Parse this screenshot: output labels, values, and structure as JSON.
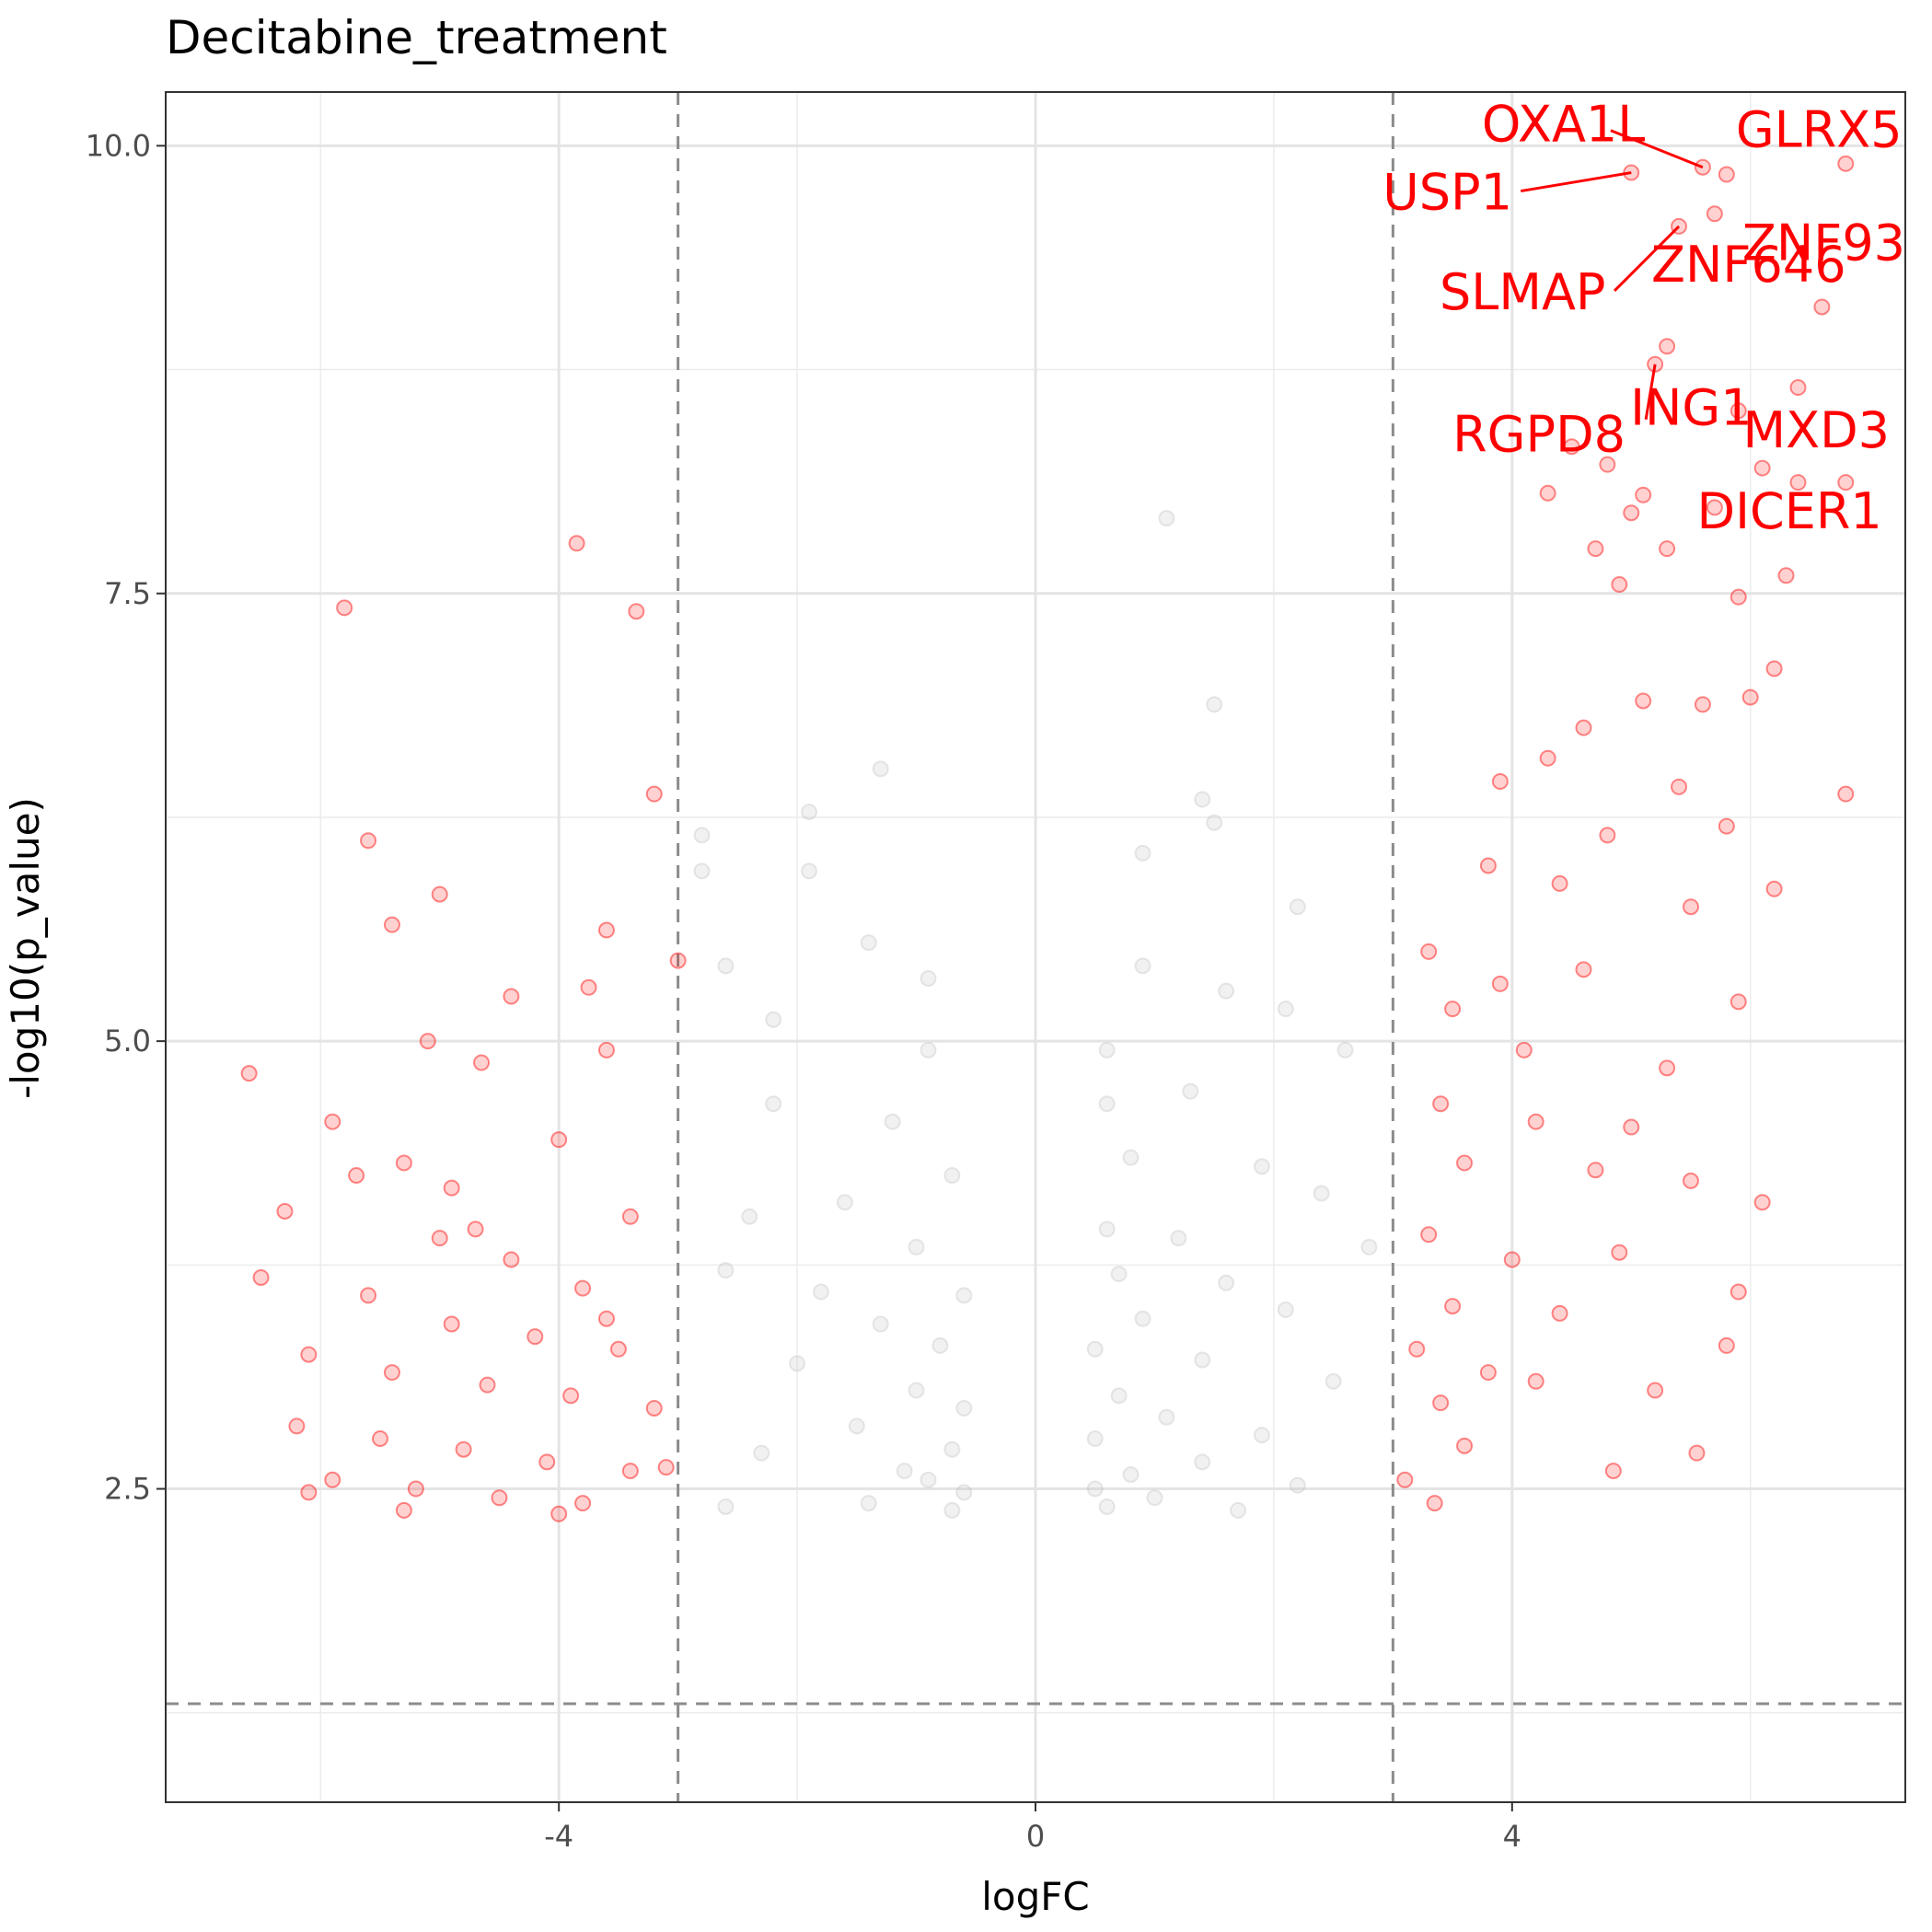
{
  "chart_data": {
    "type": "scatter",
    "title": "Decitabine_treatment",
    "xlabel": "logFC",
    "ylabel": "-log10(p_value)",
    "xlim": [
      -7.3,
      7.3
    ],
    "ylim": [
      0.75,
      10.3
    ],
    "x_ticks": [
      -4,
      0,
      4
    ],
    "x_tick_labels": [
      "-4",
      "0",
      "4"
    ],
    "y_ticks": [
      2.5,
      5.0,
      7.5,
      10.0
    ],
    "y_tick_labels": [
      "2.5",
      "5.0",
      "7.5",
      "10.0"
    ],
    "grid": true,
    "thresholds": {
      "logFC": [
        -3,
        3
      ],
      "neg_log10_p": 1.3
    },
    "colors": {
      "significant": "#ff0000",
      "not_significant": "#bebebe",
      "threshold_line": "#8c8c8c",
      "label": "#ff0000"
    },
    "series": [
      {
        "color": "#ff0000",
        "points": [
          [
            5.6,
            9.88
          ],
          [
            5.0,
            9.85
          ],
          [
            5.8,
            9.84
          ],
          [
            6.8,
            9.9
          ],
          [
            5.7,
            9.62
          ],
          [
            5.4,
            9.55
          ],
          [
            6.6,
            9.1
          ],
          [
            5.3,
            8.88
          ],
          [
            5.2,
            8.78
          ],
          [
            6.4,
            8.65
          ],
          [
            5.9,
            8.52
          ],
          [
            4.5,
            8.32
          ],
          [
            4.8,
            8.22
          ],
          [
            6.1,
            8.2
          ],
          [
            6.4,
            8.12
          ],
          [
            6.8,
            8.12
          ],
          [
            4.3,
            8.06
          ],
          [
            5.0,
            7.95
          ],
          [
            5.1,
            8.05
          ],
          [
            5.7,
            7.98
          ],
          [
            4.7,
            7.75
          ],
          [
            5.3,
            7.75
          ],
          [
            6.3,
            7.6
          ],
          [
            4.9,
            7.55
          ],
          [
            5.9,
            7.48
          ],
          [
            6.2,
            7.08
          ],
          [
            5.6,
            6.88
          ],
          [
            4.6,
            6.75
          ],
          [
            5.1,
            6.9
          ],
          [
            6.0,
            6.92
          ],
          [
            4.3,
            6.58
          ],
          [
            3.9,
            6.45
          ],
          [
            5.4,
            6.42
          ],
          [
            6.8,
            6.38
          ],
          [
            4.8,
            6.15
          ],
          [
            5.8,
            6.2
          ],
          [
            3.8,
            5.98
          ],
          [
            4.4,
            5.88
          ],
          [
            5.5,
            5.75
          ],
          [
            6.2,
            5.85
          ],
          [
            3.3,
            5.5
          ],
          [
            3.9,
            5.32
          ],
          [
            4.6,
            5.4
          ],
          [
            5.9,
            5.22
          ],
          [
            3.5,
            5.18
          ],
          [
            4.1,
            4.95
          ],
          [
            5.3,
            4.85
          ],
          [
            3.4,
            4.65
          ],
          [
            4.2,
            4.55
          ],
          [
            5.0,
            4.52
          ],
          [
            3.6,
            4.32
          ],
          [
            4.7,
            4.28
          ],
          [
            5.5,
            4.22
          ],
          [
            6.1,
            4.1
          ],
          [
            3.3,
            3.92
          ],
          [
            4.0,
            3.78
          ],
          [
            4.9,
            3.82
          ],
          [
            3.5,
            3.52
          ],
          [
            4.4,
            3.48
          ],
          [
            3.2,
            3.28
          ],
          [
            3.8,
            3.15
          ],
          [
            3.4,
            2.98
          ],
          [
            3.6,
            2.74
          ],
          [
            3.1,
            2.55
          ],
          [
            3.35,
            2.42
          ],
          [
            4.85,
            2.6
          ],
          [
            5.55,
            2.7
          ],
          [
            5.2,
            3.05
          ],
          [
            5.8,
            3.3
          ],
          [
            5.9,
            3.6
          ],
          [
            4.2,
            3.1
          ],
          [
            -5.8,
            7.42
          ],
          [
            -3.85,
            7.78
          ],
          [
            -3.35,
            7.4
          ],
          [
            -3.2,
            6.38
          ],
          [
            -5.6,
            6.12
          ],
          [
            -5.0,
            5.82
          ],
          [
            -5.4,
            5.65
          ],
          [
            -3.6,
            5.62
          ],
          [
            -3.0,
            5.45
          ],
          [
            -3.75,
            5.3
          ],
          [
            -4.4,
            5.25
          ],
          [
            -5.1,
            5.0
          ],
          [
            -3.6,
            4.95
          ],
          [
            -6.6,
            4.82
          ],
          [
            -4.65,
            4.88
          ],
          [
            -5.9,
            4.55
          ],
          [
            -4.0,
            4.45
          ],
          [
            -3.4,
            4.02
          ],
          [
            -6.3,
            4.05
          ],
          [
            -5.0,
            3.9
          ],
          [
            -4.4,
            3.78
          ],
          [
            -3.8,
            3.62
          ],
          [
            -6.5,
            3.68
          ],
          [
            -5.6,
            3.58
          ],
          [
            -4.9,
            3.42
          ],
          [
            -4.2,
            3.35
          ],
          [
            -3.5,
            3.28
          ],
          [
            -6.1,
            3.25
          ],
          [
            -5.4,
            3.15
          ],
          [
            -4.6,
            3.08
          ],
          [
            -3.9,
            3.02
          ],
          [
            -3.2,
            2.95
          ],
          [
            -6.2,
            2.85
          ],
          [
            -5.5,
            2.78
          ],
          [
            -4.8,
            2.72
          ],
          [
            -4.1,
            2.65
          ],
          [
            -3.4,
            2.6
          ],
          [
            -5.9,
            2.55
          ],
          [
            -5.2,
            2.5
          ],
          [
            -4.5,
            2.45
          ],
          [
            -3.8,
            2.42
          ],
          [
            -5.3,
            2.38
          ],
          [
            -4.0,
            2.36
          ],
          [
            -6.1,
            2.48
          ],
          [
            -3.1,
            2.62
          ],
          [
            -4.7,
            3.95
          ],
          [
            -5.7,
            4.25
          ],
          [
            -5.3,
            4.32
          ],
          [
            -4.9,
            4.18
          ],
          [
            -3.6,
            3.45
          ]
        ]
      },
      {
        "color": "#bebebe",
        "points": [
          [
            1.1,
            7.92
          ],
          [
            1.5,
            6.88
          ],
          [
            -1.3,
            6.52
          ],
          [
            1.4,
            6.35
          ],
          [
            -1.9,
            6.28
          ],
          [
            1.5,
            6.22
          ],
          [
            -2.8,
            6.15
          ],
          [
            0.9,
            6.05
          ],
          [
            -2.8,
            5.95
          ],
          [
            -1.9,
            5.95
          ],
          [
            2.2,
            5.75
          ],
          [
            -1.4,
            5.55
          ],
          [
            -2.6,
            5.42
          ],
          [
            0.9,
            5.42
          ],
          [
            -0.9,
            5.35
          ],
          [
            1.6,
            5.28
          ],
          [
            -2.2,
            5.12
          ],
          [
            2.1,
            5.18
          ],
          [
            0.6,
            4.95
          ],
          [
            -0.9,
            4.95
          ],
          [
            2.6,
            4.95
          ],
          [
            0.6,
            4.65
          ],
          [
            -2.2,
            4.65
          ],
          [
            1.3,
            4.72
          ],
          [
            -1.2,
            4.55
          ],
          [
            0.8,
            4.35
          ],
          [
            -0.7,
            4.25
          ],
          [
            1.9,
            4.3
          ],
          [
            2.4,
            4.15
          ],
          [
            -1.6,
            4.1
          ],
          [
            -2.4,
            4.02
          ],
          [
            0.6,
            3.95
          ],
          [
            1.2,
            3.9
          ],
          [
            -1.0,
            3.85
          ],
          [
            2.8,
            3.85
          ],
          [
            -2.6,
            3.72
          ],
          [
            0.7,
            3.7
          ],
          [
            1.6,
            3.65
          ],
          [
            -1.8,
            3.6
          ],
          [
            -0.6,
            3.58
          ],
          [
            2.1,
            3.5
          ],
          [
            0.9,
            3.45
          ],
          [
            -1.3,
            3.42
          ],
          [
            -0.8,
            3.3
          ],
          [
            0.5,
            3.28
          ],
          [
            1.4,
            3.22
          ],
          [
            -2.0,
            3.2
          ],
          [
            2.5,
            3.1
          ],
          [
            -1.0,
            3.05
          ],
          [
            0.7,
            3.02
          ],
          [
            -0.6,
            2.95
          ],
          [
            1.1,
            2.9
          ],
          [
            -1.5,
            2.85
          ],
          [
            1.9,
            2.8
          ],
          [
            0.5,
            2.78
          ],
          [
            -0.7,
            2.72
          ],
          [
            -2.3,
            2.7
          ],
          [
            1.4,
            2.65
          ],
          [
            -1.1,
            2.6
          ],
          [
            0.8,
            2.58
          ],
          [
            -0.9,
            2.55
          ],
          [
            2.2,
            2.52
          ],
          [
            0.5,
            2.5
          ],
          [
            -0.6,
            2.48
          ],
          [
            1.0,
            2.45
          ],
          [
            -1.4,
            2.42
          ],
          [
            0.6,
            2.4
          ],
          [
            -0.7,
            2.38
          ],
          [
            1.7,
            2.38
          ],
          [
            -2.6,
            2.4
          ]
        ]
      }
    ],
    "labels": [
      {
        "text": "OXA1L",
        "x": 5.6,
        "y": 9.88
      },
      {
        "text": "GLRX5",
        "x": 5.8,
        "y": 9.84
      },
      {
        "text": "USP1",
        "x": 5.0,
        "y": 9.85
      },
      {
        "text": "ZNF93",
        "x": 5.7,
        "y": 9.62
      },
      {
        "text": "ZNF646",
        "x": 5.4,
        "y": 9.55
      },
      {
        "text": "SLMAP",
        "x": 5.4,
        "y": 9.55
      },
      {
        "text": "ING1",
        "x": 5.3,
        "y": 8.88
      },
      {
        "text": "MXD3",
        "x": 6.4,
        "y": 8.65
      },
      {
        "text": "RGPD8",
        "x": 5.2,
        "y": 8.78
      },
      {
        "text": "DICER1",
        "x": 6.4,
        "y": 8.12
      }
    ]
  }
}
